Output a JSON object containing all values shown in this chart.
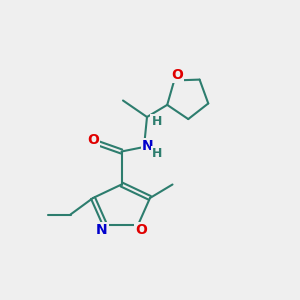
{
  "bg_color": "#efefef",
  "bond_color": "#2d7d6e",
  "bond_width": 1.5,
  "atom_colors": {
    "O": "#e00000",
    "N": "#0000cc",
    "C": "#2d7d6e",
    "H": "#2d7d6e"
  },
  "font_size": 10,
  "font_size_small": 9
}
